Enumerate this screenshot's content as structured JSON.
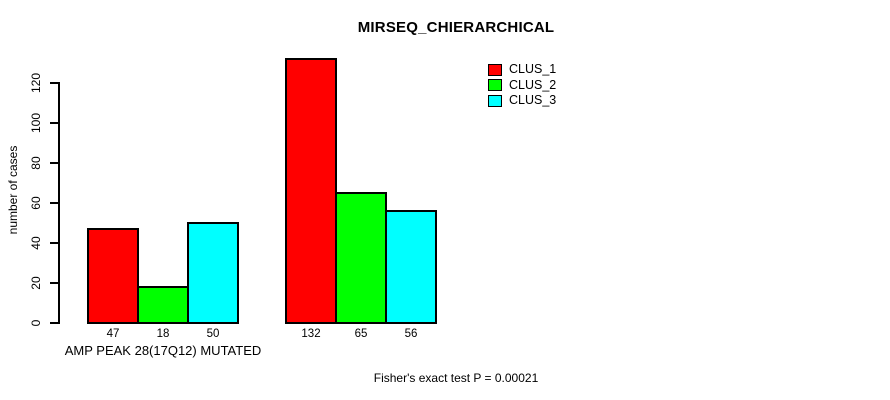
{
  "chart_data": {
    "type": "bar",
    "title": "MIRSEQ_CHIERARCHICAL",
    "ylabel": "number of cases",
    "xlabel": "AMP PEAK 28(17Q12) MUTATED",
    "categories": [
      "AMP PEAK 28(17Q12) MUTATED",
      ""
    ],
    "series": [
      {
        "name": "CLUS_1",
        "color": "#FF0000",
        "values": [
          47,
          132
        ]
      },
      {
        "name": "CLUS_2",
        "color": "#00FF00",
        "values": [
          18,
          65
        ]
      },
      {
        "name": "CLUS_3",
        "color": "#00FFFF",
        "values": [
          50,
          56
        ]
      }
    ],
    "yticks": [
      0,
      20,
      40,
      60,
      80,
      100,
      120
    ],
    "ylim": [
      0,
      132
    ],
    "grid": false,
    "legend_position": "top-right",
    "annotation": "Fisher's exact test P = 0.00021"
  },
  "colors": {
    "background": "#FFFFFF",
    "axis": "#000000",
    "bar_border": "#000000"
  }
}
